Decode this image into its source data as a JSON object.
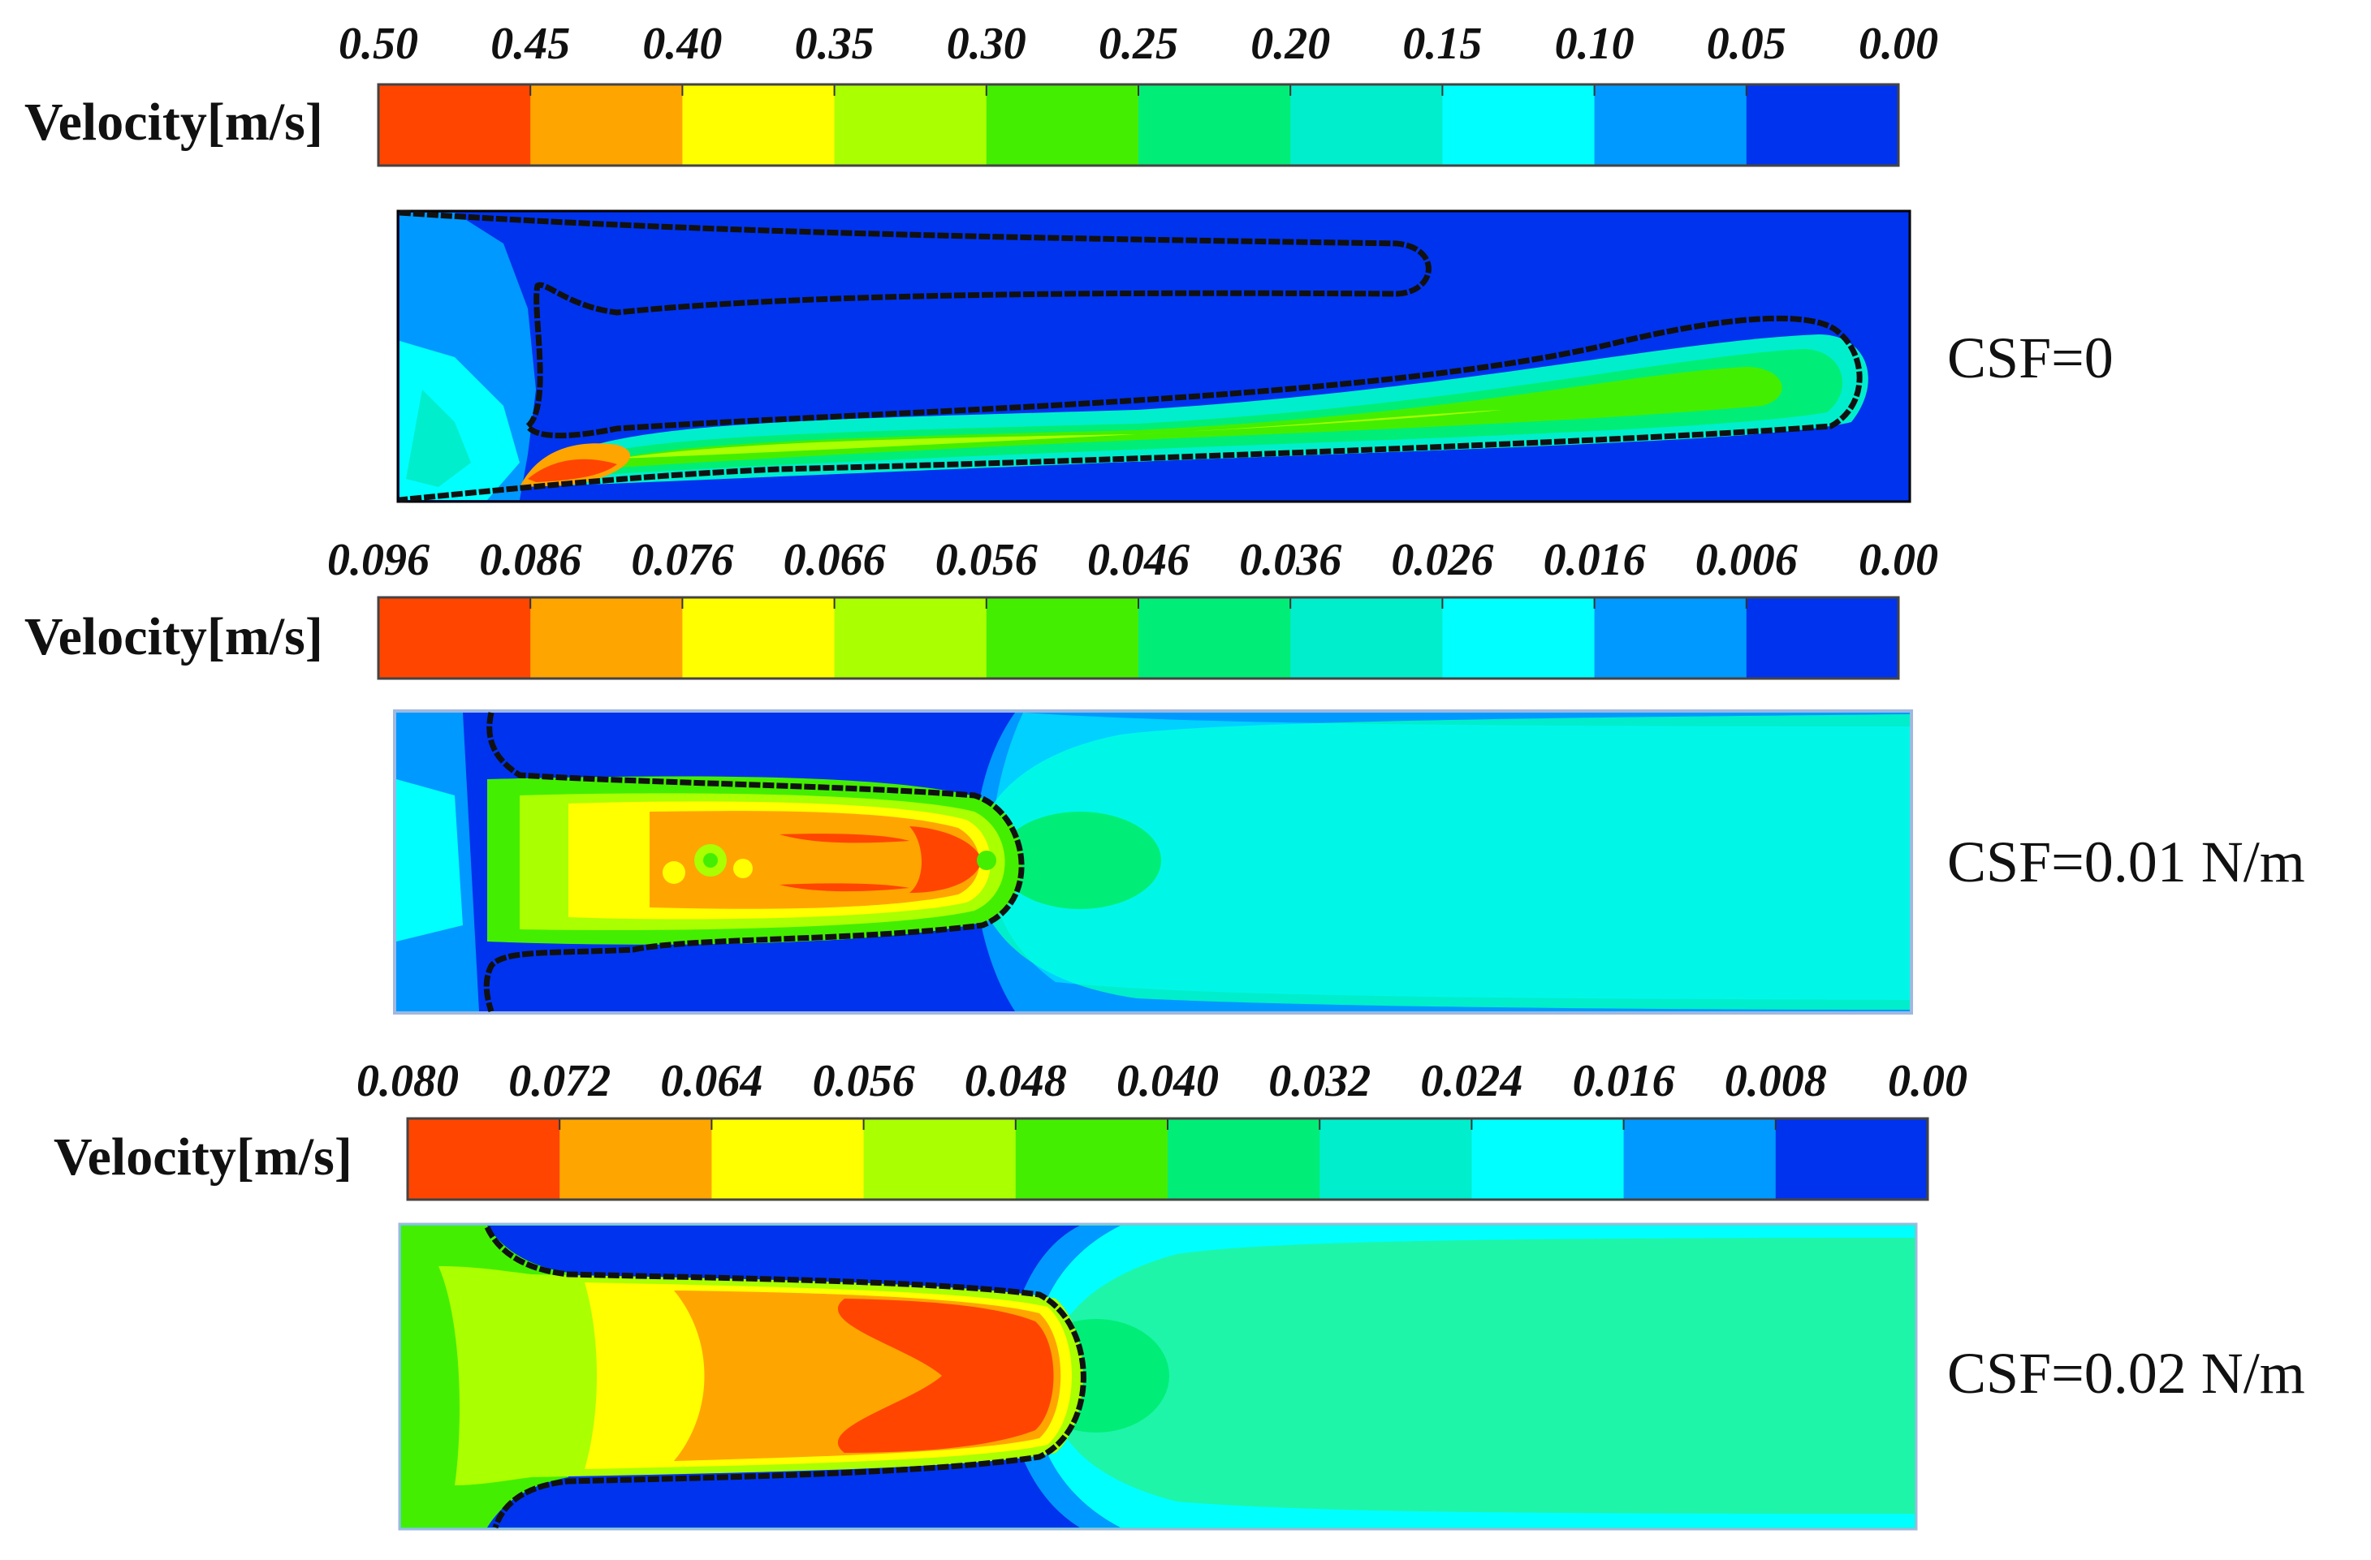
{
  "palette": [
    "#ff4500",
    "#ffa500",
    "#ffff00",
    "#aaff00",
    "#44ee00",
    "#00ee77",
    "#00eecc",
    "#00ffff",
    "#0099ff",
    "#0033ee"
  ],
  "panels": [
    {
      "legend_title": "Velocity[m/s]",
      "ticks": [
        "0.50",
        "0.45",
        "0.40",
        "0.35",
        "0.30",
        "0.25",
        "0.20",
        "0.15",
        "0.10",
        "0.05",
        "0.00"
      ],
      "case_label": "CSF=0"
    },
    {
      "legend_title": "Velocity[m/s]",
      "ticks": [
        "0.096",
        "0.086",
        "0.076",
        "0.066",
        "0.056",
        "0.046",
        "0.036",
        "0.026",
        "0.016",
        "0.006",
        "0.00"
      ],
      "case_label": "CSF=0.01 N/m"
    },
    {
      "legend_title": "Velocity[m/s]",
      "ticks": [
        "0.080",
        "0.072",
        "0.064",
        "0.056",
        "0.048",
        "0.040",
        "0.032",
        "0.024",
        "0.016",
        "0.008",
        "0.00"
      ],
      "case_label": "CSF=0.02 N/m"
    }
  ]
}
